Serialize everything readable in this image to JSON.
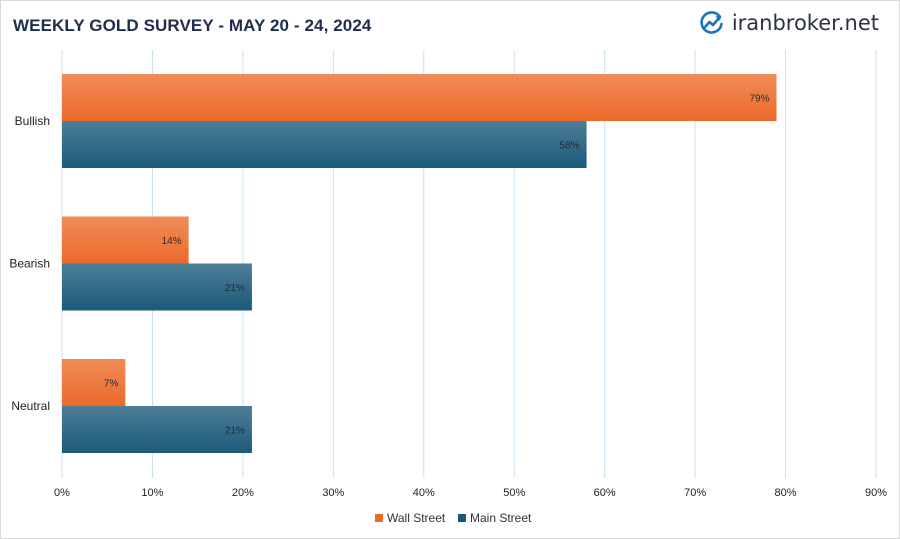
{
  "brand": {
    "name": "iranbroker.net",
    "logo_icon": "chart-arrow-logo-icon",
    "color": "#1c75bc"
  },
  "chart_data": {
    "type": "bar",
    "orientation": "horizontal",
    "title": "WEEKLY GOLD SURVEY - MAY 20 - 24, 2024",
    "categories": [
      "Bullish",
      "Bearish",
      "Neutral"
    ],
    "series": [
      {
        "name": "Wall Street",
        "values": [
          79,
          14,
          7
        ],
        "color": "#ec6a2a"
      },
      {
        "name": "Main Street",
        "values": [
          58,
          21,
          21
        ],
        "color": "#1b5a7a"
      }
    ],
    "xlim": [
      0,
      90
    ],
    "xticks": [
      0,
      10,
      20,
      30,
      40,
      50,
      60,
      70,
      80,
      90
    ],
    "tick_format": "%",
    "value_format": "%",
    "grid": "vertical",
    "legend": "bottom"
  }
}
